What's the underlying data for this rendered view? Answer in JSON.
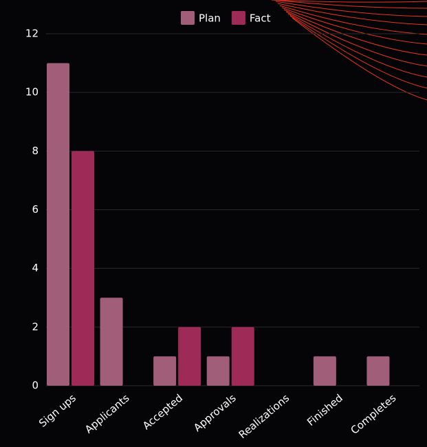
{
  "chart_data": {
    "type": "bar",
    "categories": [
      "Sign ups",
      "Applicants",
      "Accepted",
      "Approvals",
      "Realizations",
      "Finished",
      "Completes"
    ],
    "series": [
      {
        "name": "Plan",
        "color": "#a05e78",
        "values": [
          11,
          3,
          1,
          1,
          0,
          1,
          1
        ]
      },
      {
        "name": "Fact",
        "color": "#9e2b57",
        "values": [
          8,
          0,
          2,
          2,
          0,
          0,
          0
        ]
      }
    ],
    "ylim": [
      0,
      12
    ],
    "yticks": [
      0,
      2,
      4,
      6,
      8,
      10,
      12
    ],
    "grid": true,
    "legend": "top"
  }
}
